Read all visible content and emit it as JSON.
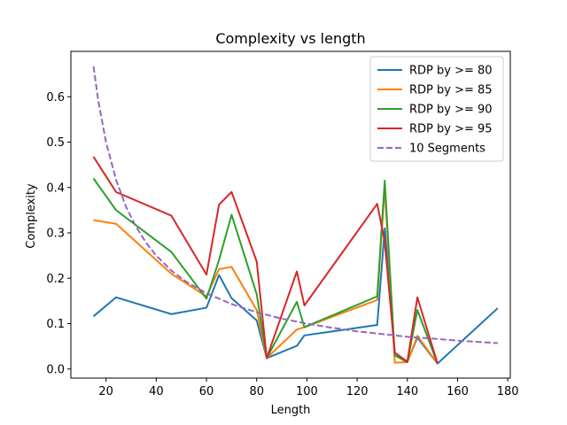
{
  "chart_data": {
    "type": "line",
    "title": "Complexity vs length",
    "xlabel": "Length",
    "ylabel": "Complexity",
    "xlim": [
      6,
      181
    ],
    "ylim": [
      -0.02,
      0.7
    ],
    "xticks": [
      20,
      40,
      60,
      80,
      100,
      120,
      140,
      160,
      180
    ],
    "yticks": [
      0.0,
      0.1,
      0.2,
      0.3,
      0.4,
      0.5,
      0.6
    ],
    "grid": false,
    "legend_position": "top-right",
    "series": [
      {
        "name": "RDP by >= 80",
        "color": "#1f77b4",
        "style": "solid",
        "points": [
          [
            15,
            0.116
          ],
          [
            24,
            0.158
          ],
          [
            46,
            0.121
          ],
          [
            60,
            0.135
          ],
          [
            65,
            0.207
          ],
          [
            70,
            0.156
          ],
          [
            80,
            0.107
          ],
          [
            84,
            0.024
          ],
          [
            96,
            0.051
          ],
          [
            99,
            0.074
          ],
          [
            128,
            0.097
          ],
          [
            131,
            0.31
          ],
          [
            135,
            0.036
          ],
          [
            140,
            0.016
          ],
          [
            144,
            0.069
          ],
          [
            152,
            0.012
          ],
          [
            176,
            0.134
          ]
        ]
      },
      {
        "name": "RDP by >= 85",
        "color": "#ff7f0e",
        "style": "solid",
        "points": [
          [
            15,
            0.328
          ],
          [
            24,
            0.32
          ],
          [
            46,
            0.21
          ],
          [
            60,
            0.16
          ],
          [
            65,
            0.22
          ],
          [
            70,
            0.225
          ],
          [
            80,
            0.13
          ],
          [
            84,
            0.024
          ],
          [
            96,
            0.087
          ],
          [
            99,
            0.092
          ],
          [
            128,
            0.152
          ],
          [
            131,
            0.4
          ],
          [
            135,
            0.014
          ],
          [
            140,
            0.015
          ],
          [
            144,
            0.073
          ],
          [
            152,
            0.012
          ]
        ]
      },
      {
        "name": "RDP by >= 90",
        "color": "#2ca02c",
        "style": "solid",
        "points": [
          [
            15,
            0.42
          ],
          [
            24,
            0.35
          ],
          [
            46,
            0.258
          ],
          [
            60,
            0.155
          ],
          [
            65,
            0.24
          ],
          [
            70,
            0.34
          ],
          [
            80,
            0.165
          ],
          [
            84,
            0.024
          ],
          [
            96,
            0.148
          ],
          [
            99,
            0.092
          ],
          [
            128,
            0.16
          ],
          [
            131,
            0.415
          ],
          [
            135,
            0.03
          ],
          [
            140,
            0.015
          ],
          [
            144,
            0.13
          ],
          [
            152,
            0.012
          ]
        ]
      },
      {
        "name": "RDP by >= 95",
        "color": "#d62728",
        "style": "solid",
        "points": [
          [
            15,
            0.468
          ],
          [
            24,
            0.39
          ],
          [
            46,
            0.338
          ],
          [
            60,
            0.208
          ],
          [
            65,
            0.362
          ],
          [
            70,
            0.39
          ],
          [
            80,
            0.237
          ],
          [
            84,
            0.024
          ],
          [
            96,
            0.215
          ],
          [
            99,
            0.14
          ],
          [
            128,
            0.364
          ],
          [
            131,
            0.28
          ],
          [
            135,
            0.036
          ],
          [
            140,
            0.016
          ],
          [
            144,
            0.158
          ],
          [
            152,
            0.012
          ]
        ]
      },
      {
        "name": "10 Segments",
        "color": "#9467bd",
        "style": "dashed",
        "points": [
          [
            15,
            0.667
          ],
          [
            17,
            0.588
          ],
          [
            20,
            0.5
          ],
          [
            24,
            0.417
          ],
          [
            28,
            0.357
          ],
          [
            32,
            0.313
          ],
          [
            36,
            0.278
          ],
          [
            40,
            0.25
          ],
          [
            46,
            0.217
          ],
          [
            52,
            0.192
          ],
          [
            60,
            0.167
          ],
          [
            70,
            0.143
          ],
          [
            80,
            0.125
          ],
          [
            90,
            0.111
          ],
          [
            100,
            0.1
          ],
          [
            110,
            0.091
          ],
          [
            120,
            0.083
          ],
          [
            130,
            0.077
          ],
          [
            140,
            0.071
          ],
          [
            150,
            0.067
          ],
          [
            160,
            0.0625
          ],
          [
            176,
            0.057
          ]
        ]
      }
    ]
  }
}
